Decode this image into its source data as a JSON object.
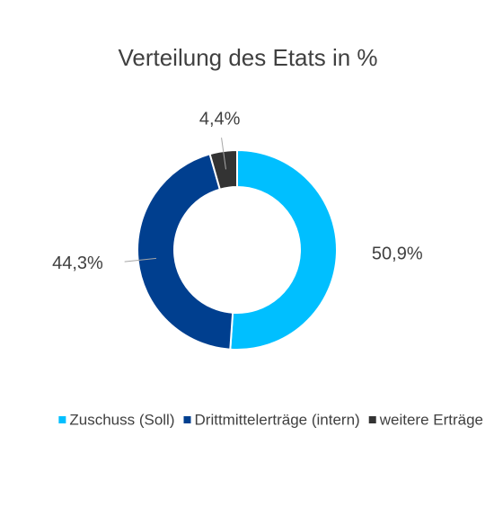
{
  "chart_data": {
    "type": "pie",
    "title": "Verteilung des Etats in %",
    "categories": [
      "Zuschuss (Soll)",
      "Drittmittelerträge (intern)",
      "weitere Erträge"
    ],
    "values": [
      50.9,
      44.3,
      4.4
    ],
    "value_labels": [
      "50,9%",
      "44,3%",
      "4,4%"
    ],
    "colors": [
      "#00bfff",
      "#003f8f",
      "#333333"
    ],
    "legend": "bottom"
  }
}
